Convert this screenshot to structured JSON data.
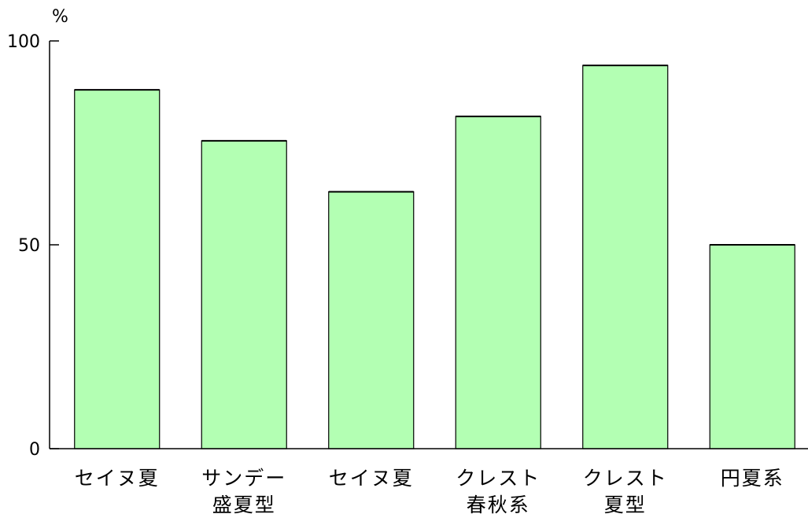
{
  "chart_data": {
    "type": "bar",
    "y_unit": "%",
    "categories": [
      [
        "セイヌ夏"
      ],
      [
        "サンデー",
        "盛夏型"
      ],
      [
        "セイヌ夏"
      ],
      [
        "クレスト",
        "春秋系"
      ],
      [
        "クレスト",
        "夏型"
      ],
      [
        "円夏系"
      ]
    ],
    "values": [
      88,
      75.5,
      63,
      81.5,
      94,
      50
    ],
    "ylim": [
      0,
      100
    ],
    "yticks": [
      0,
      50,
      100
    ],
    "bar_color": "#b3ffb3",
    "bar_edge_color": "#000000",
    "grid": false,
    "title": "",
    "xlabel": "",
    "ylabel": ""
  }
}
